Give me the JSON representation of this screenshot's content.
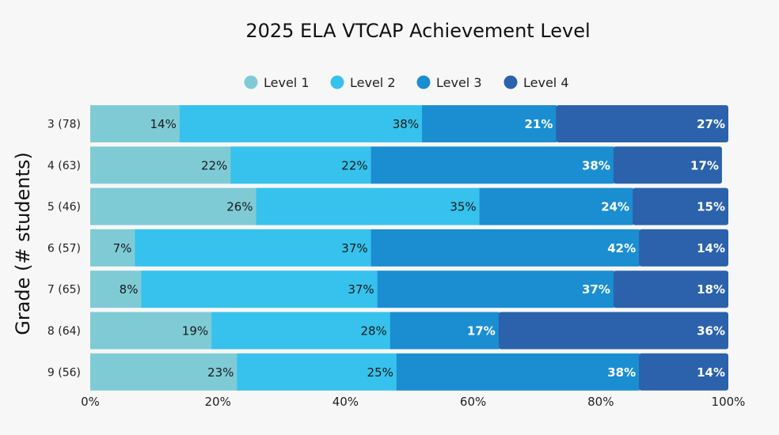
{
  "chart_data": {
    "type": "bar",
    "orientation": "horizontal",
    "stacked": true,
    "title": "2025 ELA VTCAP Achievement Level",
    "xlabel": "",
    "ylabel": "Grade (# students)",
    "xlim": [
      0,
      100
    ],
    "x_ticks": [
      "0%",
      "20%",
      "40%",
      "60%",
      "80%",
      "100%"
    ],
    "x_tick_values": [
      0,
      20,
      40,
      60,
      80,
      100
    ],
    "legend_position": "top-center",
    "categories": [
      "3 (78)",
      "4 (63)",
      "5 (46)",
      "6 (57)",
      "7 (65)",
      "8 (64)",
      "9 (56)"
    ],
    "series": [
      {
        "name": "Level 1",
        "color": "#7ecbd6",
        "label_color": "#1a1a1a",
        "values": [
          14,
          22,
          26,
          7,
          8,
          19,
          23
        ],
        "labels": [
          "14%",
          "22%",
          "26%",
          "7%",
          "8%",
          "19%",
          "23%"
        ]
      },
      {
        "name": "Level 2",
        "color": "#36c2ec",
        "label_color": "#1a1a1a",
        "values": [
          38,
          22,
          35,
          37,
          37,
          28,
          25
        ],
        "labels": [
          "38%",
          "22%",
          "35%",
          "37%",
          "37%",
          "28%",
          "25%"
        ]
      },
      {
        "name": "Level 3",
        "color": "#1a8ed1",
        "label_color": "#ffffff",
        "values": [
          21,
          38,
          24,
          42,
          37,
          17,
          38
        ],
        "labels": [
          "21%",
          "38%",
          "24%",
          "42%",
          "37%",
          "17%",
          "38%"
        ]
      },
      {
        "name": "Level 4",
        "color": "#2b62ab",
        "label_color": "#ffffff",
        "values": [
          27,
          17,
          15,
          14,
          18,
          36,
          14
        ],
        "labels": [
          "27%",
          "17%",
          "15%",
          "14%",
          "18%",
          "36%",
          "14%"
        ]
      }
    ]
  }
}
